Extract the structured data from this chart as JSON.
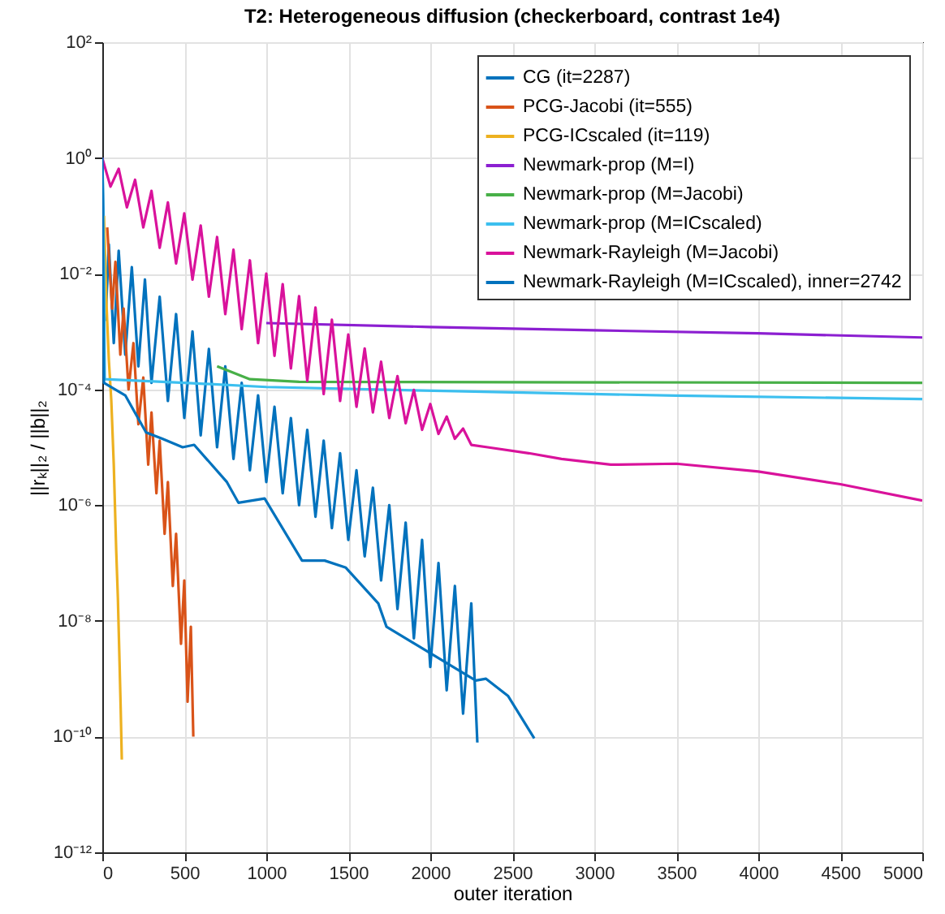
{
  "chart_data": {
    "type": "line",
    "title": "T2: Heterogeneous diffusion (checkerboard, contrast 1e4)",
    "xlabel": "outer iteration",
    "ylabel": "||rₖ||₂  /  ||b||₂",
    "log": "y",
    "grid": true,
    "legend": "top right",
    "xlim": [
      0,
      5000
    ],
    "xticks": [
      0,
      500,
      1000,
      1500,
      2000,
      2500,
      3000,
      3500,
      4000,
      4500,
      5000
    ],
    "ylim": [
      1e-12,
      100
    ],
    "yticks": [
      {
        "value": 1e-12,
        "label": "10⁻¹²"
      },
      {
        "value": 1e-10,
        "label": "10⁻¹⁰"
      },
      {
        "value": 1e-08,
        "label": "10⁻⁸"
      },
      {
        "value": 1e-06,
        "label": "10⁻⁶"
      },
      {
        "value": 0.0001,
        "label": "10⁻⁴"
      },
      {
        "value": 0.01,
        "label": "10⁻²"
      },
      {
        "value": 1,
        "label": "10⁰"
      },
      {
        "value": 100,
        "label": "10²"
      }
    ],
    "series": [
      {
        "name": "CG (it=2287)",
        "color": "#0072bd",
        "x": [
          0,
          20,
          40,
          70,
          100,
          140,
          180,
          220,
          260,
          300,
          350,
          400,
          450,
          500,
          550,
          600,
          650,
          700,
          750,
          800,
          850,
          900,
          950,
          1000,
          1050,
          1100,
          1150,
          1200,
          1250,
          1300,
          1350,
          1400,
          1450,
          1500,
          1550,
          1600,
          1650,
          1700,
          1750,
          1800,
          1850,
          1900,
          1950,
          2000,
          2050,
          2100,
          2150,
          2200,
          2250,
          2287
        ],
        "values": [
          1,
          0.0016,
          0.032,
          0.00063,
          0.025,
          0.0004,
          0.013,
          0.00025,
          0.0079,
          0.00013,
          0.004,
          6.3e-05,
          0.002,
          3.2e-05,
          0.001,
          1.6e-05,
          0.0005,
          1e-05,
          0.00025,
          6.3e-06,
          0.00013,
          4e-06,
          7.9e-05,
          2.5e-06,
          5e-05,
          1.6e-06,
          3.2e-05,
          1e-06,
          2e-05,
          6.3e-07,
          1.3e-05,
          4e-07,
          7.9e-06,
          2.5e-07,
          4e-06,
          1.3e-07,
          2e-06,
          5e-08,
          1e-06,
          1.6e-08,
          5e-07,
          5e-09,
          2.5e-07,
          1.6e-09,
          1e-07,
          6.3e-10,
          4e-08,
          2.5e-10,
          2e-08,
          7.9e-11
        ]
      },
      {
        "name": "PCG-Jacobi (it=555)",
        "color": "#d95319",
        "x": [
          30,
          60,
          80,
          110,
          130,
          160,
          190,
          220,
          250,
          280,
          300,
          330,
          350,
          380,
          400,
          430,
          450,
          480,
          500,
          520,
          540,
          555
        ],
        "values": [
          0.063,
          0.0025,
          0.016,
          0.0004,
          0.0025,
          0.0001,
          0.00063,
          2.5e-05,
          0.00016,
          5e-06,
          4e-05,
          1.6e-06,
          1.3e-05,
          3.2e-07,
          2.5e-06,
          4e-08,
          3.2e-07,
          4e-09,
          5e-08,
          4e-10,
          7.9e-09,
          1e-10
        ]
      },
      {
        "name": "PCG-ICscaled (it=119)",
        "color": "#edb120",
        "x": [
          10,
          25,
          40,
          55,
          70,
          85,
          95,
          105,
          112,
          119
        ],
        "values": [
          0.1,
          0.0032,
          0.00032,
          6.3e-05,
          5e-06,
          1.6e-07,
          2.5e-08,
          2e-09,
          3.2e-10,
          4e-11
        ]
      },
      {
        "name": "Newmark-prop (M=I)",
        "color": "#8c1fd1",
        "x": [
          1000,
          2000,
          3000,
          4000,
          5000
        ],
        "values": [
          0.0014,
          0.0012,
          0.00105,
          0.00093,
          0.00079
        ]
      },
      {
        "name": "Newmark-prop (M=Jacobi)",
        "color": "#48b048",
        "x": [
          700,
          900,
          1200,
          5000
        ],
        "values": [
          0.00025,
          0.00015,
          0.000135,
          0.00013
        ]
      },
      {
        "name": "Newmark-prop (M=ICscaled)",
        "color": "#3cbfef",
        "x": [
          0,
          10,
          15,
          500,
          1000,
          2150,
          3500,
          5000
        ],
        "values": [
          1,
          0.01,
          0.00015,
          0.00013,
          0.00011,
          9.3e-05,
          7.8e-05,
          6.8e-05
        ]
      },
      {
        "name": "Newmark-Rayleigh (M=Jacobi)",
        "color": "#d9129b",
        "x": [
          0,
          50,
          100,
          150,
          200,
          250,
          300,
          350,
          400,
          450,
          500,
          550,
          600,
          650,
          700,
          750,
          800,
          850,
          900,
          950,
          1000,
          1050,
          1100,
          1150,
          1200,
          1250,
          1300,
          1350,
          1400,
          1450,
          1500,
          1550,
          1600,
          1650,
          1700,
          1750,
          1800,
          1850,
          1900,
          1950,
          2000,
          2050,
          2100,
          2150,
          2200,
          2250,
          2350,
          2600,
          2800,
          3100,
          3500,
          4000,
          4500,
          5000
        ],
        "values": [
          1,
          0.32,
          0.65,
          0.14,
          0.42,
          0.063,
          0.27,
          0.028,
          0.17,
          0.015,
          0.11,
          0.0079,
          0.068,
          0.004,
          0.043,
          0.002,
          0.026,
          0.0011,
          0.017,
          0.00063,
          0.01,
          0.00038,
          0.0066,
          0.00023,
          0.0041,
          0.00014,
          0.0026,
          8.3e-05,
          0.0016,
          6.3e-05,
          0.00089,
          5e-05,
          0.00051,
          4e-05,
          0.0003,
          3.2e-05,
          0.00017,
          2.6e-05,
          9.8e-05,
          2e-05,
          5.6e-05,
          1.7e-05,
          3.4e-05,
          1.4e-05,
          2.1e-05,
          1.1e-05,
          1e-05,
          7.9e-06,
          6.3e-06,
          5e-06,
          5.2e-06,
          3.8e-06,
          2.3e-06,
          1.2e-06
        ]
      },
      {
        "name": "Newmark-Rayleigh (M=ICscaled), inner=2742",
        "color": "#0072bd",
        "x": [
          0,
          10,
          140,
          267,
          366,
          490,
          560,
          760,
          830,
          990,
          1218,
          1356,
          1485,
          1683,
          1733,
          2277,
          2340,
          2475,
          2634
        ],
        "values": [
          1,
          0.00013,
          7.9e-05,
          1.8e-05,
          1.4e-05,
          1e-05,
          1.1e-05,
          2.5e-06,
          1.1e-06,
          1.3e-06,
          1.1e-07,
          1.1e-07,
          8.3e-08,
          2e-08,
          7.9e-09,
          9.3e-10,
          1e-09,
          5e-10,
          9.3e-11
        ]
      }
    ]
  }
}
